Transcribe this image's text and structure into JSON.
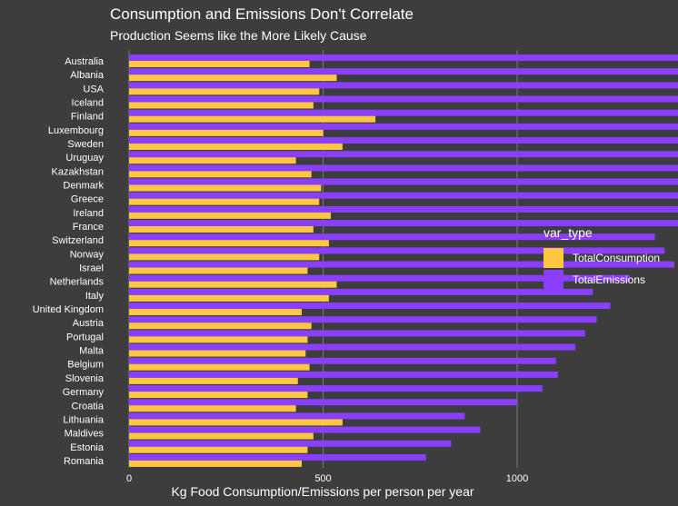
{
  "chart_data": {
    "type": "bar",
    "orientation": "horizontal",
    "title": "Consumption and Emissions Don't Correlate",
    "subtitle": "Production Seems like the More Likely Cause",
    "xlabel": "Kg Food Consumption/Emissions per person per year",
    "ylabel": "",
    "xlim": [
      0,
      2050
    ],
    "xticks": [
      0,
      500,
      1000,
      1500,
      2000
    ],
    "grid": true,
    "legend_title": "var_type",
    "legend_position": "right",
    "categories": [
      "Australia",
      "Albania",
      "USA",
      "Iceland",
      "Finland",
      "Luxembourg",
      "Sweden",
      "Uruguay",
      "Kazakhstan",
      "Denmark",
      "Greece",
      "Ireland",
      "France",
      "Switzerland",
      "Norway",
      "Israel",
      "Netherlands",
      "Italy",
      "United Kingdom",
      "Austria",
      "Portugal",
      "Malta",
      "Belgium",
      "Slovenia",
      "Germany",
      "Croatia",
      "Lithuania",
      "Maldives",
      "Estonia",
      "Romania"
    ],
    "series": [
      {
        "name": "TotalConsumption",
        "color": "#ffc642",
        "values": [
          465,
          535,
          490,
          475,
          635,
          500,
          550,
          430,
          470,
          495,
          490,
          520,
          475,
          515,
          490,
          460,
          535,
          515,
          445,
          470,
          460,
          455,
          465,
          435,
          460,
          430,
          550,
          475,
          460,
          445
        ]
      },
      {
        "name": "TotalEmissions",
        "color": "#8a3ffc",
        "values": [
          1940,
          1775,
          1720,
          1730,
          1465,
          1595,
          1520,
          1635,
          1570,
          1500,
          1500,
          1460,
          1415,
          1355,
          1380,
          1405,
          1290,
          1195,
          1240,
          1205,
          1175,
          1150,
          1100,
          1105,
          1065,
          1000,
          865,
          905,
          830,
          765
        ]
      }
    ]
  }
}
